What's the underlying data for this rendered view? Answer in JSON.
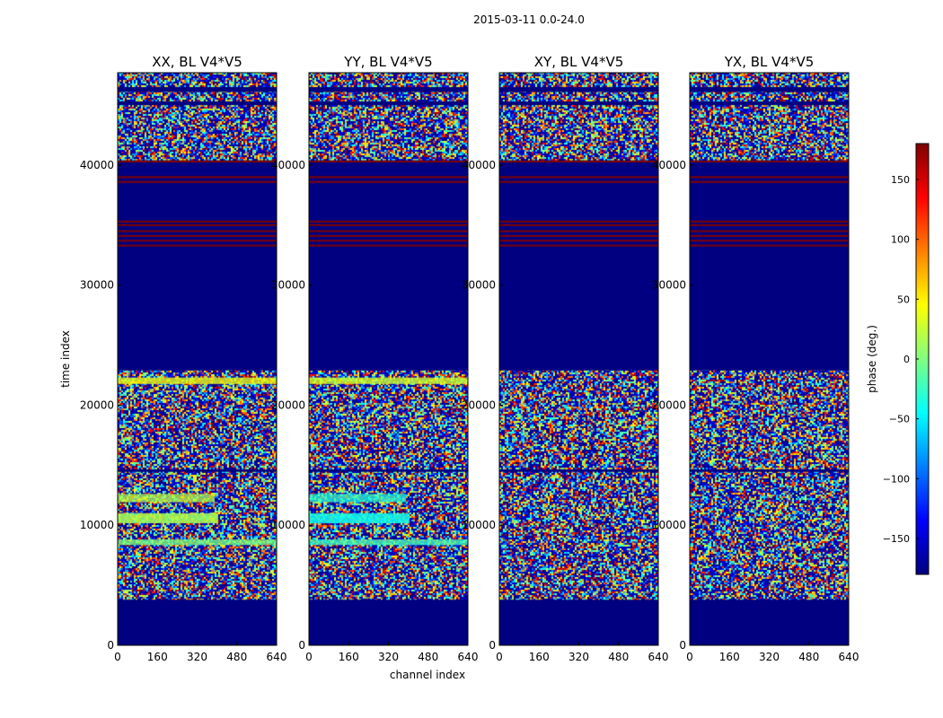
{
  "figure_title": "2015-03-11 0.0-24.0",
  "chart_data": {
    "type": "heatmap",
    "colormap": "jet",
    "panels": [
      {
        "id": "xx",
        "title": "XX, BL V4*V5",
        "pol": "XX"
      },
      {
        "id": "yy",
        "title": "YY, BL V4*V5",
        "pol": "YY"
      },
      {
        "id": "xy",
        "title": "XY, BL V4*V5",
        "pol": "XY"
      },
      {
        "id": "yx",
        "title": "YX, BL V4*V5",
        "pol": "YX"
      }
    ],
    "xlabel": "channel index",
    "ylabel": "time index",
    "xlim": [
      0,
      640
    ],
    "ylim": [
      0,
      47700
    ],
    "xticks": [
      "0",
      "160",
      "320",
      "480",
      "640"
    ],
    "xtick_values": [
      0,
      160,
      320,
      480,
      640
    ],
    "yticks": [
      "0",
      "10000",
      "20000",
      "30000",
      "40000"
    ],
    "ytick_values": [
      0,
      10000,
      20000,
      30000,
      40000
    ],
    "colorbar": {
      "label": "phase (deg.)",
      "range": [
        -180,
        180
      ],
      "ticks": [
        "−150",
        "−100",
        "−50",
        "0",
        "50",
        "100",
        "150"
      ],
      "tick_values": [
        -150,
        -100,
        -50,
        0,
        50,
        100,
        150
      ]
    },
    "constant_bands": [
      {
        "t0": 0,
        "t1": 3800,
        "phase": -180
      },
      {
        "t0": 14450,
        "t1": 14650,
        "phase": -180
      },
      {
        "t0": 22900,
        "t1": 40400,
        "phase": -180
      },
      {
        "t0": 45000,
        "t1": 45300,
        "phase": -180
      },
      {
        "t0": 46100,
        "t1": 46500,
        "phase": -180
      }
    ],
    "flag_lines_phase": 180,
    "flag_line_times": [
      33300,
      33700,
      34100,
      34500,
      35000,
      35300,
      38600,
      39000,
      40300
    ],
    "coherent_bands": [
      {
        "pols": [
          "XX",
          "YY"
        ],
        "t0": 12000,
        "t1": 12600,
        "ch1": 390,
        "phase_xx": 20,
        "phase_yy": -30
      },
      {
        "pols": [
          "XX",
          "YY"
        ],
        "t0": 10200,
        "t1": 11000,
        "ch1": 400,
        "phase_xx": 15,
        "phase_yy": -40
      },
      {
        "pols": [
          "XX",
          "YY"
        ],
        "t0": 8400,
        "t1": 8800,
        "ch1": 640,
        "phase_xx": 0,
        "phase_yy": -20
      },
      {
        "pols": [
          "XX",
          "YY"
        ],
        "t0": 21800,
        "t1": 22300,
        "ch1": 640,
        "phase_xx": 40,
        "phase_yy": 30
      }
    ]
  }
}
